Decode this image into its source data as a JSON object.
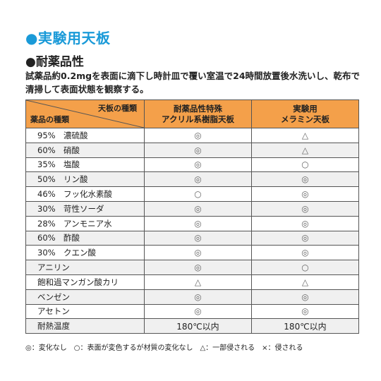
{
  "title": "●実験用天板",
  "subtitle": "●耐薬品性",
  "description": "試薬品約0.2mgを表面に滴下し時計皿で覆い室温で24時間放置後水洗いし、乾布で清掃して表面状態を観察する。",
  "table": {
    "corner_top": "天板の種類",
    "corner_bottom": "薬品の種類",
    "col1_line1": "耐薬品性特殊",
    "col1_line2": "アクリル系樹脂天板",
    "col2_line1": "実験用",
    "col2_line2": "メラミン天板",
    "rows": [
      {
        "chem": "95%　濃硫酸",
        "acryl": "◎",
        "melamine": "△"
      },
      {
        "chem": "60%　硝酸",
        "acryl": "◎",
        "melamine": "△"
      },
      {
        "chem": "35%　塩酸",
        "acryl": "◎",
        "melamine": "○"
      },
      {
        "chem": "50%　リン酸",
        "acryl": "◎",
        "melamine": "◎"
      },
      {
        "chem": "46%　フッ化水素酸",
        "acryl": "○",
        "melamine": "◎"
      },
      {
        "chem": "30%　苛性ソーダ",
        "acryl": "◎",
        "melamine": "◎"
      },
      {
        "chem": "28%　アンモニア水",
        "acryl": "◎",
        "melamine": "◎"
      },
      {
        "chem": "60%　酢酸",
        "acryl": "◎",
        "melamine": "◎"
      },
      {
        "chem": "30%　クエン酸",
        "acryl": "◎",
        "melamine": "◎"
      },
      {
        "chem": "アニリン",
        "acryl": "◎",
        "melamine": "○"
      },
      {
        "chem": "飽和過マンガン酸カリ",
        "acryl": "△",
        "melamine": "△"
      },
      {
        "chem": "ベンゼン",
        "acryl": "◎",
        "melamine": "◎"
      },
      {
        "chem": "アセトン",
        "acryl": "◎",
        "melamine": "◎"
      }
    ],
    "temp_label": "耐熱温度",
    "temp_acryl": "180℃以内",
    "temp_melamine": "180℃以内"
  },
  "legend": "◎：変化なし　○：表面が変色するが材質の変化なし　△：一部侵される　×：侵される"
}
